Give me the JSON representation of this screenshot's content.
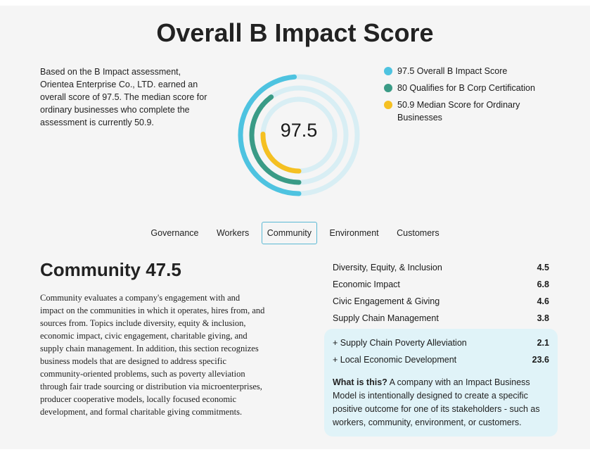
{
  "header": {
    "title": "Overall B Impact Score"
  },
  "intro": {
    "text": "Based on the B Impact assessment, Orientea Enterprise Co., LTD. earned an overall score of 97.5. The median score for ordinary businesses who complete the assessment is currently 50.9."
  },
  "score_ring": {
    "center_value": "97.5",
    "max_score": 200,
    "rings": [
      {
        "name": "Overall B Impact Score",
        "value": 97.5,
        "color": "#4ec3e0"
      },
      {
        "name": "Qualifies for B Corp Certification",
        "value": 80,
        "color": "#3a9b86"
      },
      {
        "name": "Median Score for Ordinary Businesses",
        "value": 50.9,
        "color": "#f5c022"
      }
    ],
    "track_color": "#d8eef4"
  },
  "legend": {
    "items": [
      {
        "label": "97.5 Overall B Impact Score",
        "color": "#4ec3e0"
      },
      {
        "label": "80 Qualifies for B Corp Certification",
        "color": "#3a9b86"
      },
      {
        "label": "50.9 Median Score for Ordinary Businesses",
        "color": "#f5c022"
      }
    ]
  },
  "tabs": {
    "items": [
      "Governance",
      "Workers",
      "Community",
      "Environment",
      "Customers"
    ],
    "active": "Community"
  },
  "section": {
    "heading": "Community 47.5",
    "description": "Community evaluates a company's engagement with and impact on the communities in which it operates, hires from, and sources from. Topics include diversity, equity & inclusion, economic impact, civic engagement, charitable giving, and supply chain management. In addition, this section recognizes business models that are designed to address specific community-oriented problems, such as poverty alleviation through fair trade sourcing or distribution via microenterprises, producer cooperative models, locally focused economic development, and formal charitable giving commitments."
  },
  "metrics": [
    {
      "label": "Diversity, Equity, & Inclusion",
      "value": "4.5"
    },
    {
      "label": "Economic Impact",
      "value": "6.8"
    },
    {
      "label": "Civic Engagement & Giving",
      "value": "4.6"
    },
    {
      "label": "Supply Chain Management",
      "value": "3.8"
    }
  ],
  "impact_business_models": {
    "rows": [
      {
        "label": "+ Supply Chain Poverty Alleviation",
        "value": "2.1"
      },
      {
        "label": "+ Local Economic Development",
        "value": "23.6"
      }
    ],
    "note_label": "What is this?",
    "note_text": " A company with an Impact Business Model is intentionally designed to create a specific positive outcome for one of its stakeholders - such as workers, community, environment, or customers.",
    "background": "#e0f3f8"
  }
}
